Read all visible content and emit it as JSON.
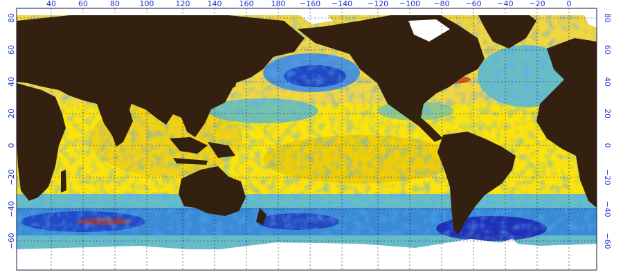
{
  "map": {
    "top_longitude_labels": [
      "40",
      "60",
      "80",
      "100",
      "120",
      "140",
      "160",
      "180",
      "−160",
      "−140",
      "−120",
      "−100",
      "−80",
      "−60",
      "−40",
      "−20",
      "0"
    ],
    "latitude_labels": [
      "80",
      "60",
      "40",
      "20",
      "0",
      "−20",
      "−40",
      "−60"
    ],
    "colors": {
      "land": "#33200f",
      "ice": "#ffffff",
      "grid": "#1a1a40",
      "label": "#1a33cc",
      "anomaly_warm_strong": "#e6b800",
      "anomaly_warm": "#ffee00",
      "anomaly_neutral": "#f0e050",
      "anomaly_cool": "#3ab4f0",
      "anomaly_cold": "#1060d0",
      "anomaly_very_cold": "#1a1ab0",
      "anomaly_hot": "#cc3300"
    }
  }
}
